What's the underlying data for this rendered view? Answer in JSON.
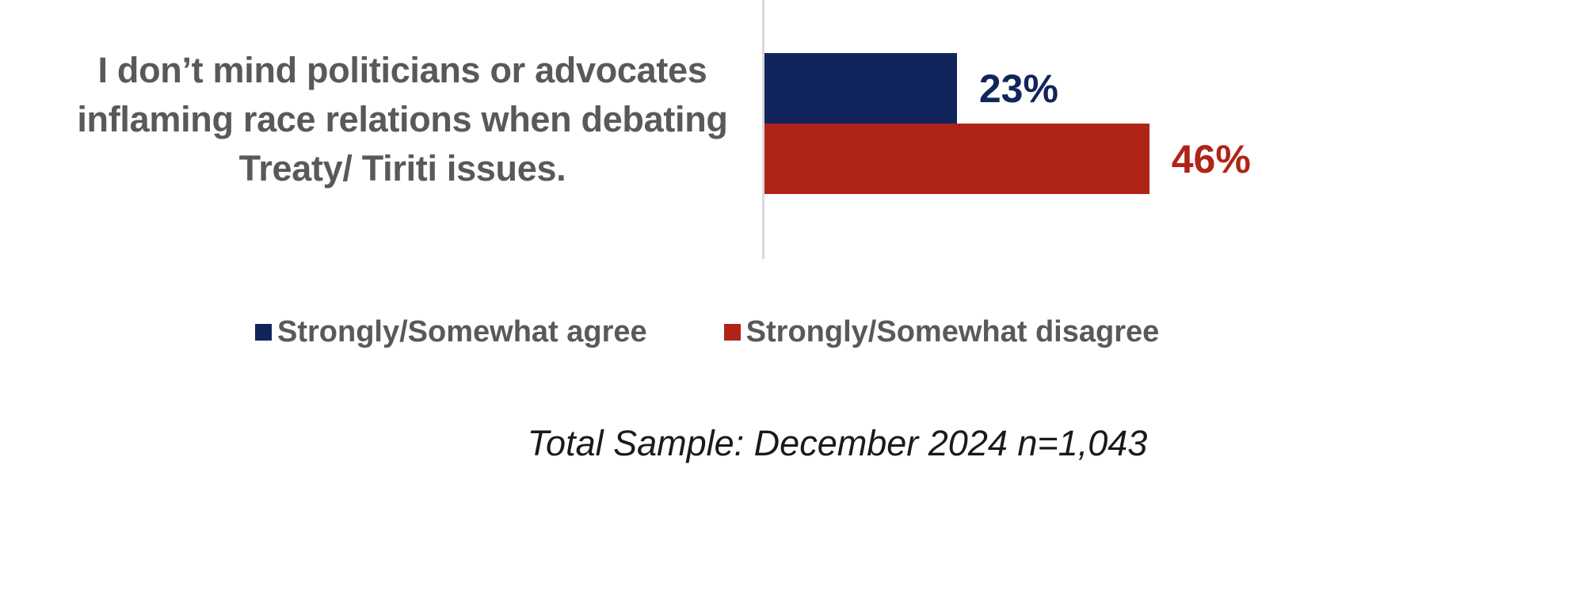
{
  "chart_data": {
    "type": "bar",
    "orientation": "horizontal",
    "statement": "I don’t mind politicians or advocates inflaming race relations when debating Treaty/ Tiriti issues.",
    "categories": [
      "Strongly/Somewhat agree",
      "Strongly/Somewhat disagree"
    ],
    "values": [
      23,
      46
    ],
    "value_labels": [
      "23%",
      "46%"
    ],
    "colors": [
      "#12245c",
      "#b02418"
    ],
    "xlim": [
      0,
      100
    ],
    "grid": false,
    "axis_line_color": "#d9d9d9",
    "text_color": "#595959",
    "legend_position": "bottom",
    "footnote": "Total Sample: December 2024 n=1,043"
  }
}
